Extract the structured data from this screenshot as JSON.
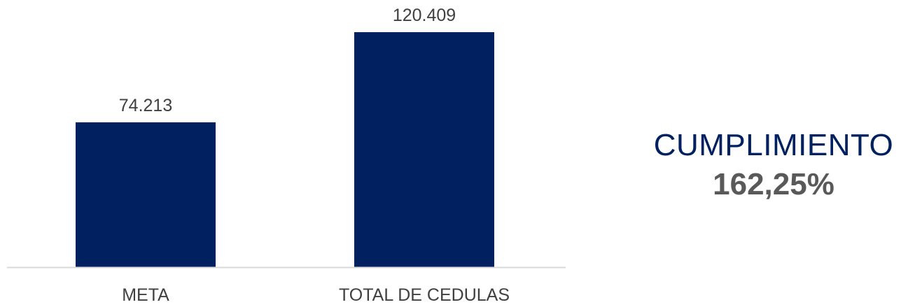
{
  "chart_data": {
    "type": "bar",
    "categories": [
      "META",
      "TOTAL DE CEDULAS"
    ],
    "values": [
      74213,
      120409
    ],
    "data_labels": [
      "74.213",
      "120.409"
    ],
    "title": "",
    "xlabel": "",
    "ylabel": "",
    "ylim": [
      0,
      120409
    ],
    "grid": false,
    "bar_color": "#002060",
    "axis_color": "#d9d9d9"
  },
  "kpi": {
    "title": "CUMPLIMIENTO",
    "value": "162,25%",
    "title_color": "#002060",
    "value_color": "#595959"
  }
}
